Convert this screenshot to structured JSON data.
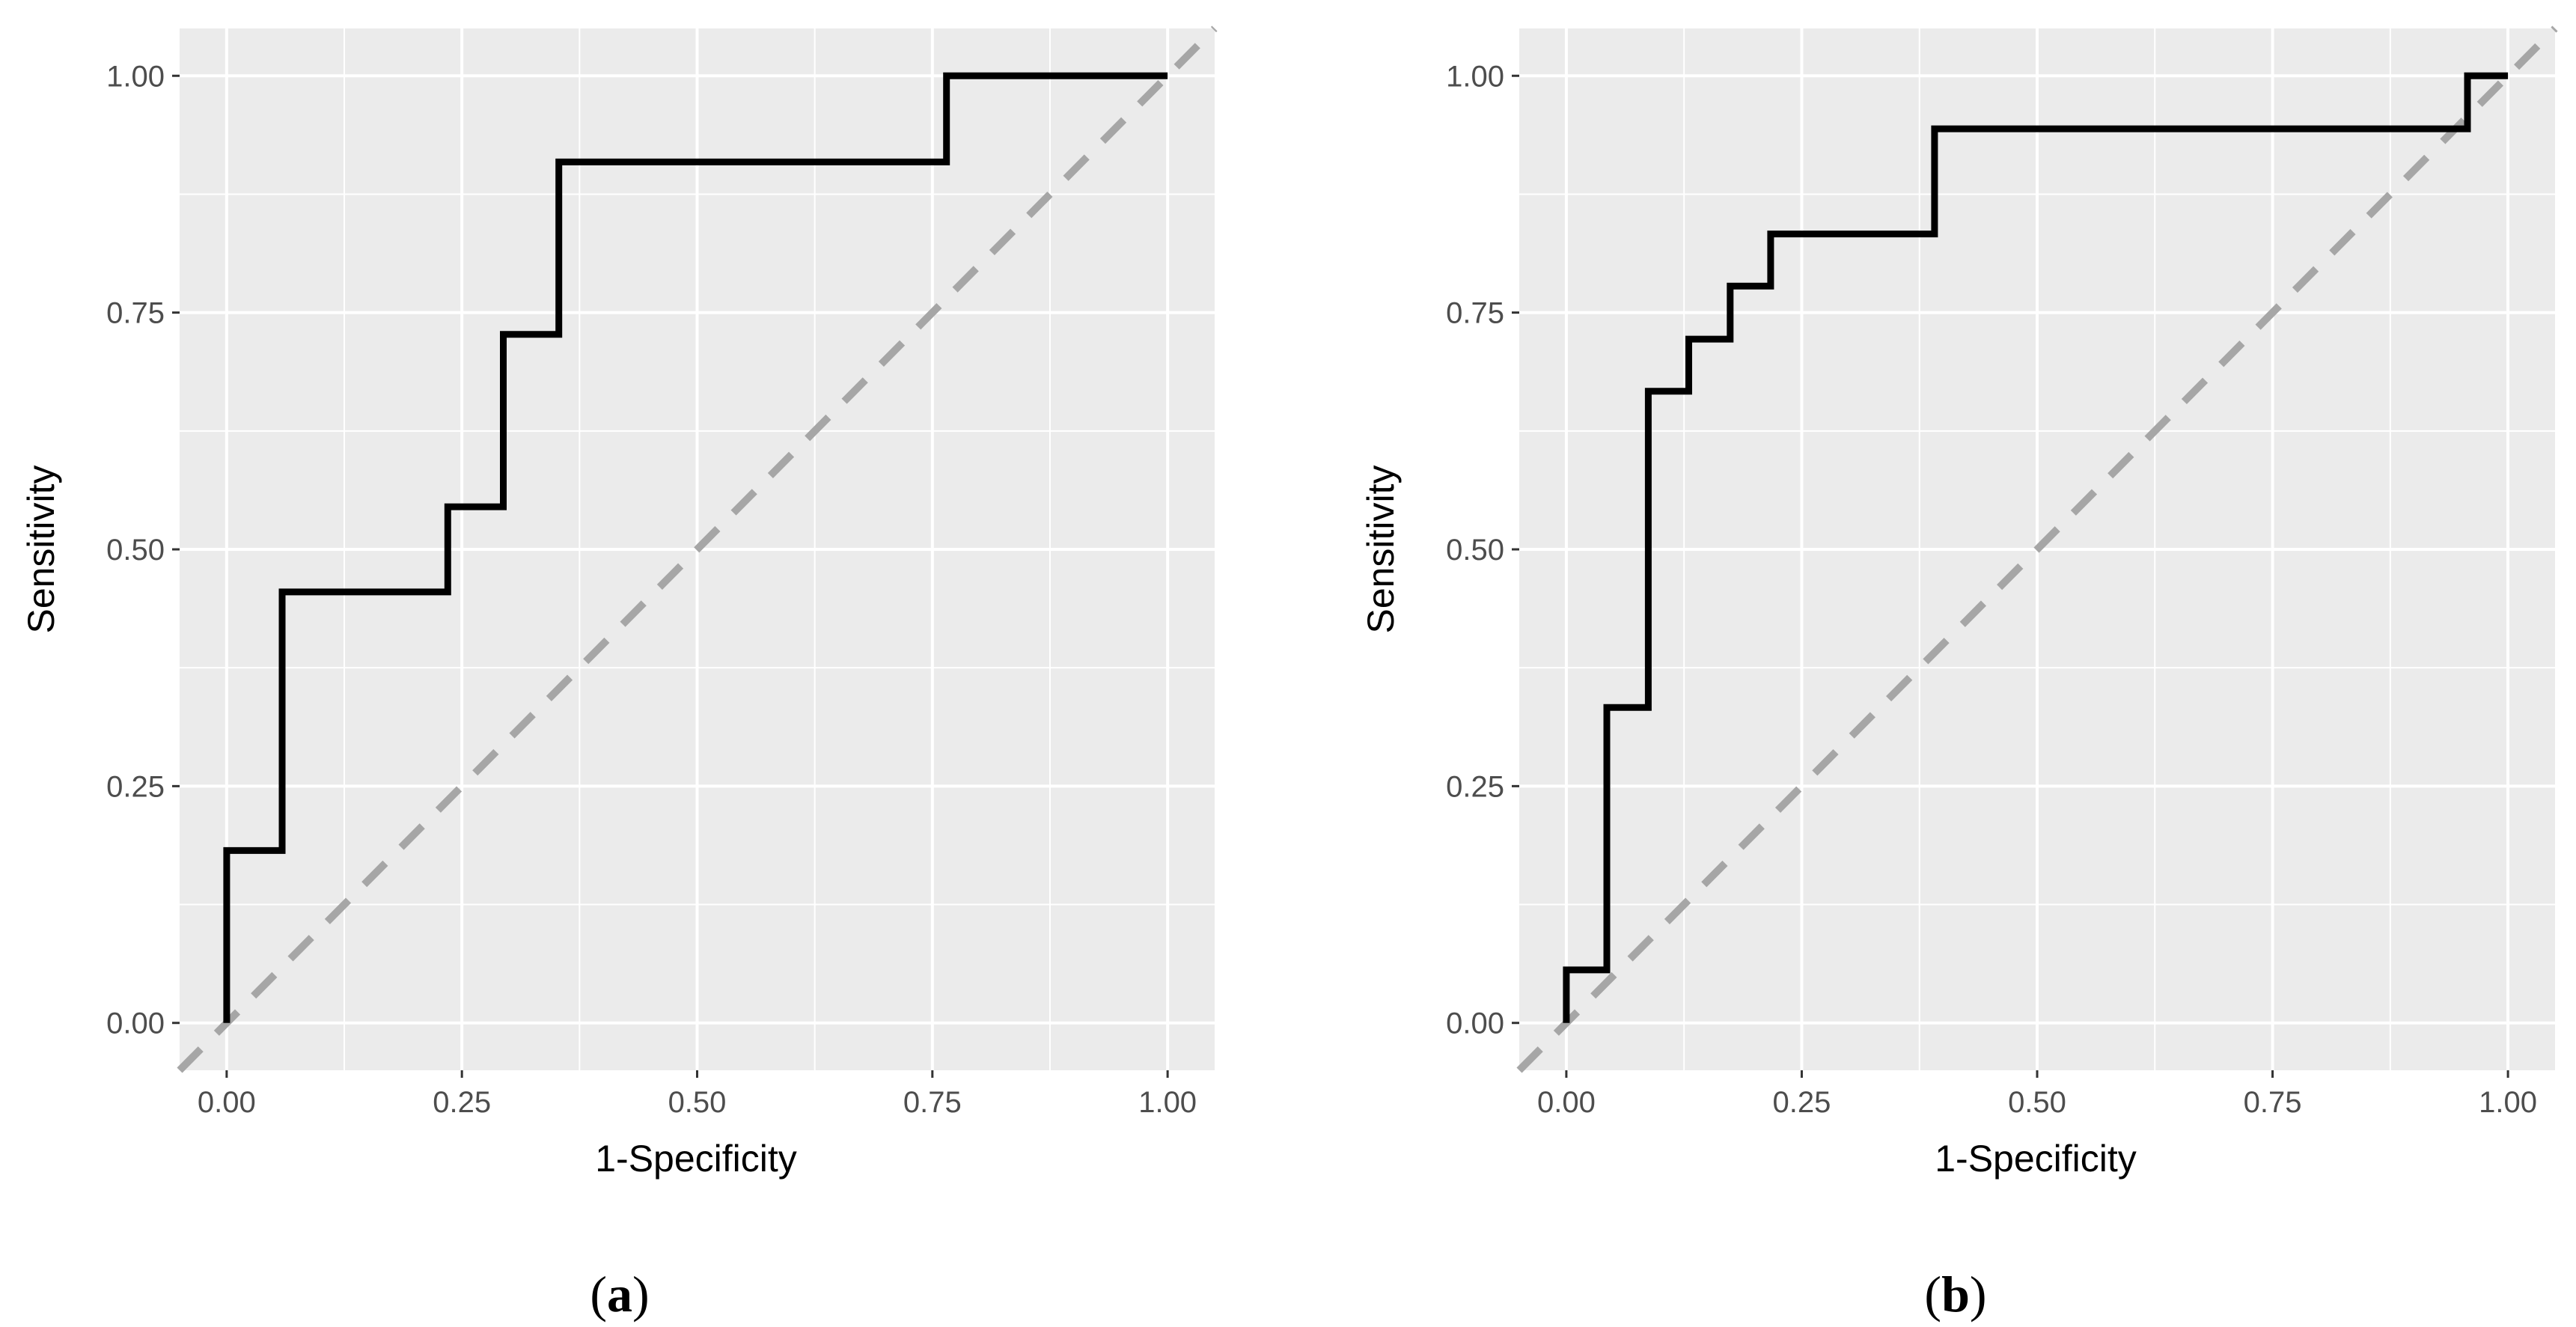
{
  "chart_data": [
    {
      "type": "line",
      "panel_label": {
        "open": "(",
        "letter": "a",
        "close": ")"
      },
      "title": "",
      "xlabel": "1-Specificity",
      "ylabel": "Sensitivity",
      "xlim": [
        -0.05,
        1.05
      ],
      "ylim": [
        -0.05,
        1.05
      ],
      "grid": true,
      "xticks": [
        0,
        0.25,
        0.5,
        0.75,
        1
      ],
      "yticks": [
        0,
        0.25,
        0.5,
        0.75,
        1
      ],
      "xtick_labels": [
        "0.00",
        "0.25",
        "0.50",
        "0.75",
        "1.00"
      ],
      "ytick_labels": [
        "0.00",
        "0.25",
        "0.50",
        "0.75",
        "1.00"
      ],
      "series": [
        {
          "name": "ROC curve",
          "style": "step",
          "color": "#000000",
          "x": [
            0,
            0,
            0.059,
            0.059,
            0.235,
            0.235,
            0.294,
            0.294,
            0.353,
            0.353,
            0.765,
            0.765,
            1.0
          ],
          "y": [
            0,
            0.182,
            0.182,
            0.455,
            0.455,
            0.545,
            0.545,
            0.727,
            0.727,
            0.909,
            0.909,
            1.0,
            1.0
          ]
        },
        {
          "name": "Reference diagonal",
          "style": "dashed",
          "color": "#a6a6a6",
          "x": [
            -0.05,
            1.05
          ],
          "y": [
            -0.05,
            1.05
          ]
        }
      ]
    },
    {
      "type": "line",
      "panel_label": {
        "open": "(",
        "letter": "b",
        "close": ")"
      },
      "title": "",
      "xlabel": "1-Specificity",
      "ylabel": "Sensitivity",
      "xlim": [
        -0.05,
        1.05
      ],
      "ylim": [
        -0.05,
        1.05
      ],
      "grid": true,
      "xticks": [
        0,
        0.25,
        0.5,
        0.75,
        1
      ],
      "yticks": [
        0,
        0.25,
        0.5,
        0.75,
        1
      ],
      "xtick_labels": [
        "0.00",
        "0.25",
        "0.50",
        "0.75",
        "1.00"
      ],
      "ytick_labels": [
        "0.00",
        "0.25",
        "0.50",
        "0.75",
        "1.00"
      ],
      "series": [
        {
          "name": "ROC curve",
          "style": "step",
          "color": "#000000",
          "x": [
            0,
            0,
            0.043,
            0.043,
            0.087,
            0.087,
            0.13,
            0.13,
            0.174,
            0.174,
            0.217,
            0.217,
            0.391,
            0.391,
            0.957,
            0.957,
            1.0
          ],
          "y": [
            0,
            0.056,
            0.056,
            0.333,
            0.333,
            0.667,
            0.667,
            0.722,
            0.722,
            0.778,
            0.778,
            0.833,
            0.833,
            0.944,
            0.944,
            1.0,
            1.0
          ]
        },
        {
          "name": "Reference diagonal",
          "style": "dashed",
          "color": "#a6a6a6",
          "x": [
            -0.05,
            1.05
          ],
          "y": [
            -0.05,
            1.05
          ]
        }
      ]
    }
  ]
}
